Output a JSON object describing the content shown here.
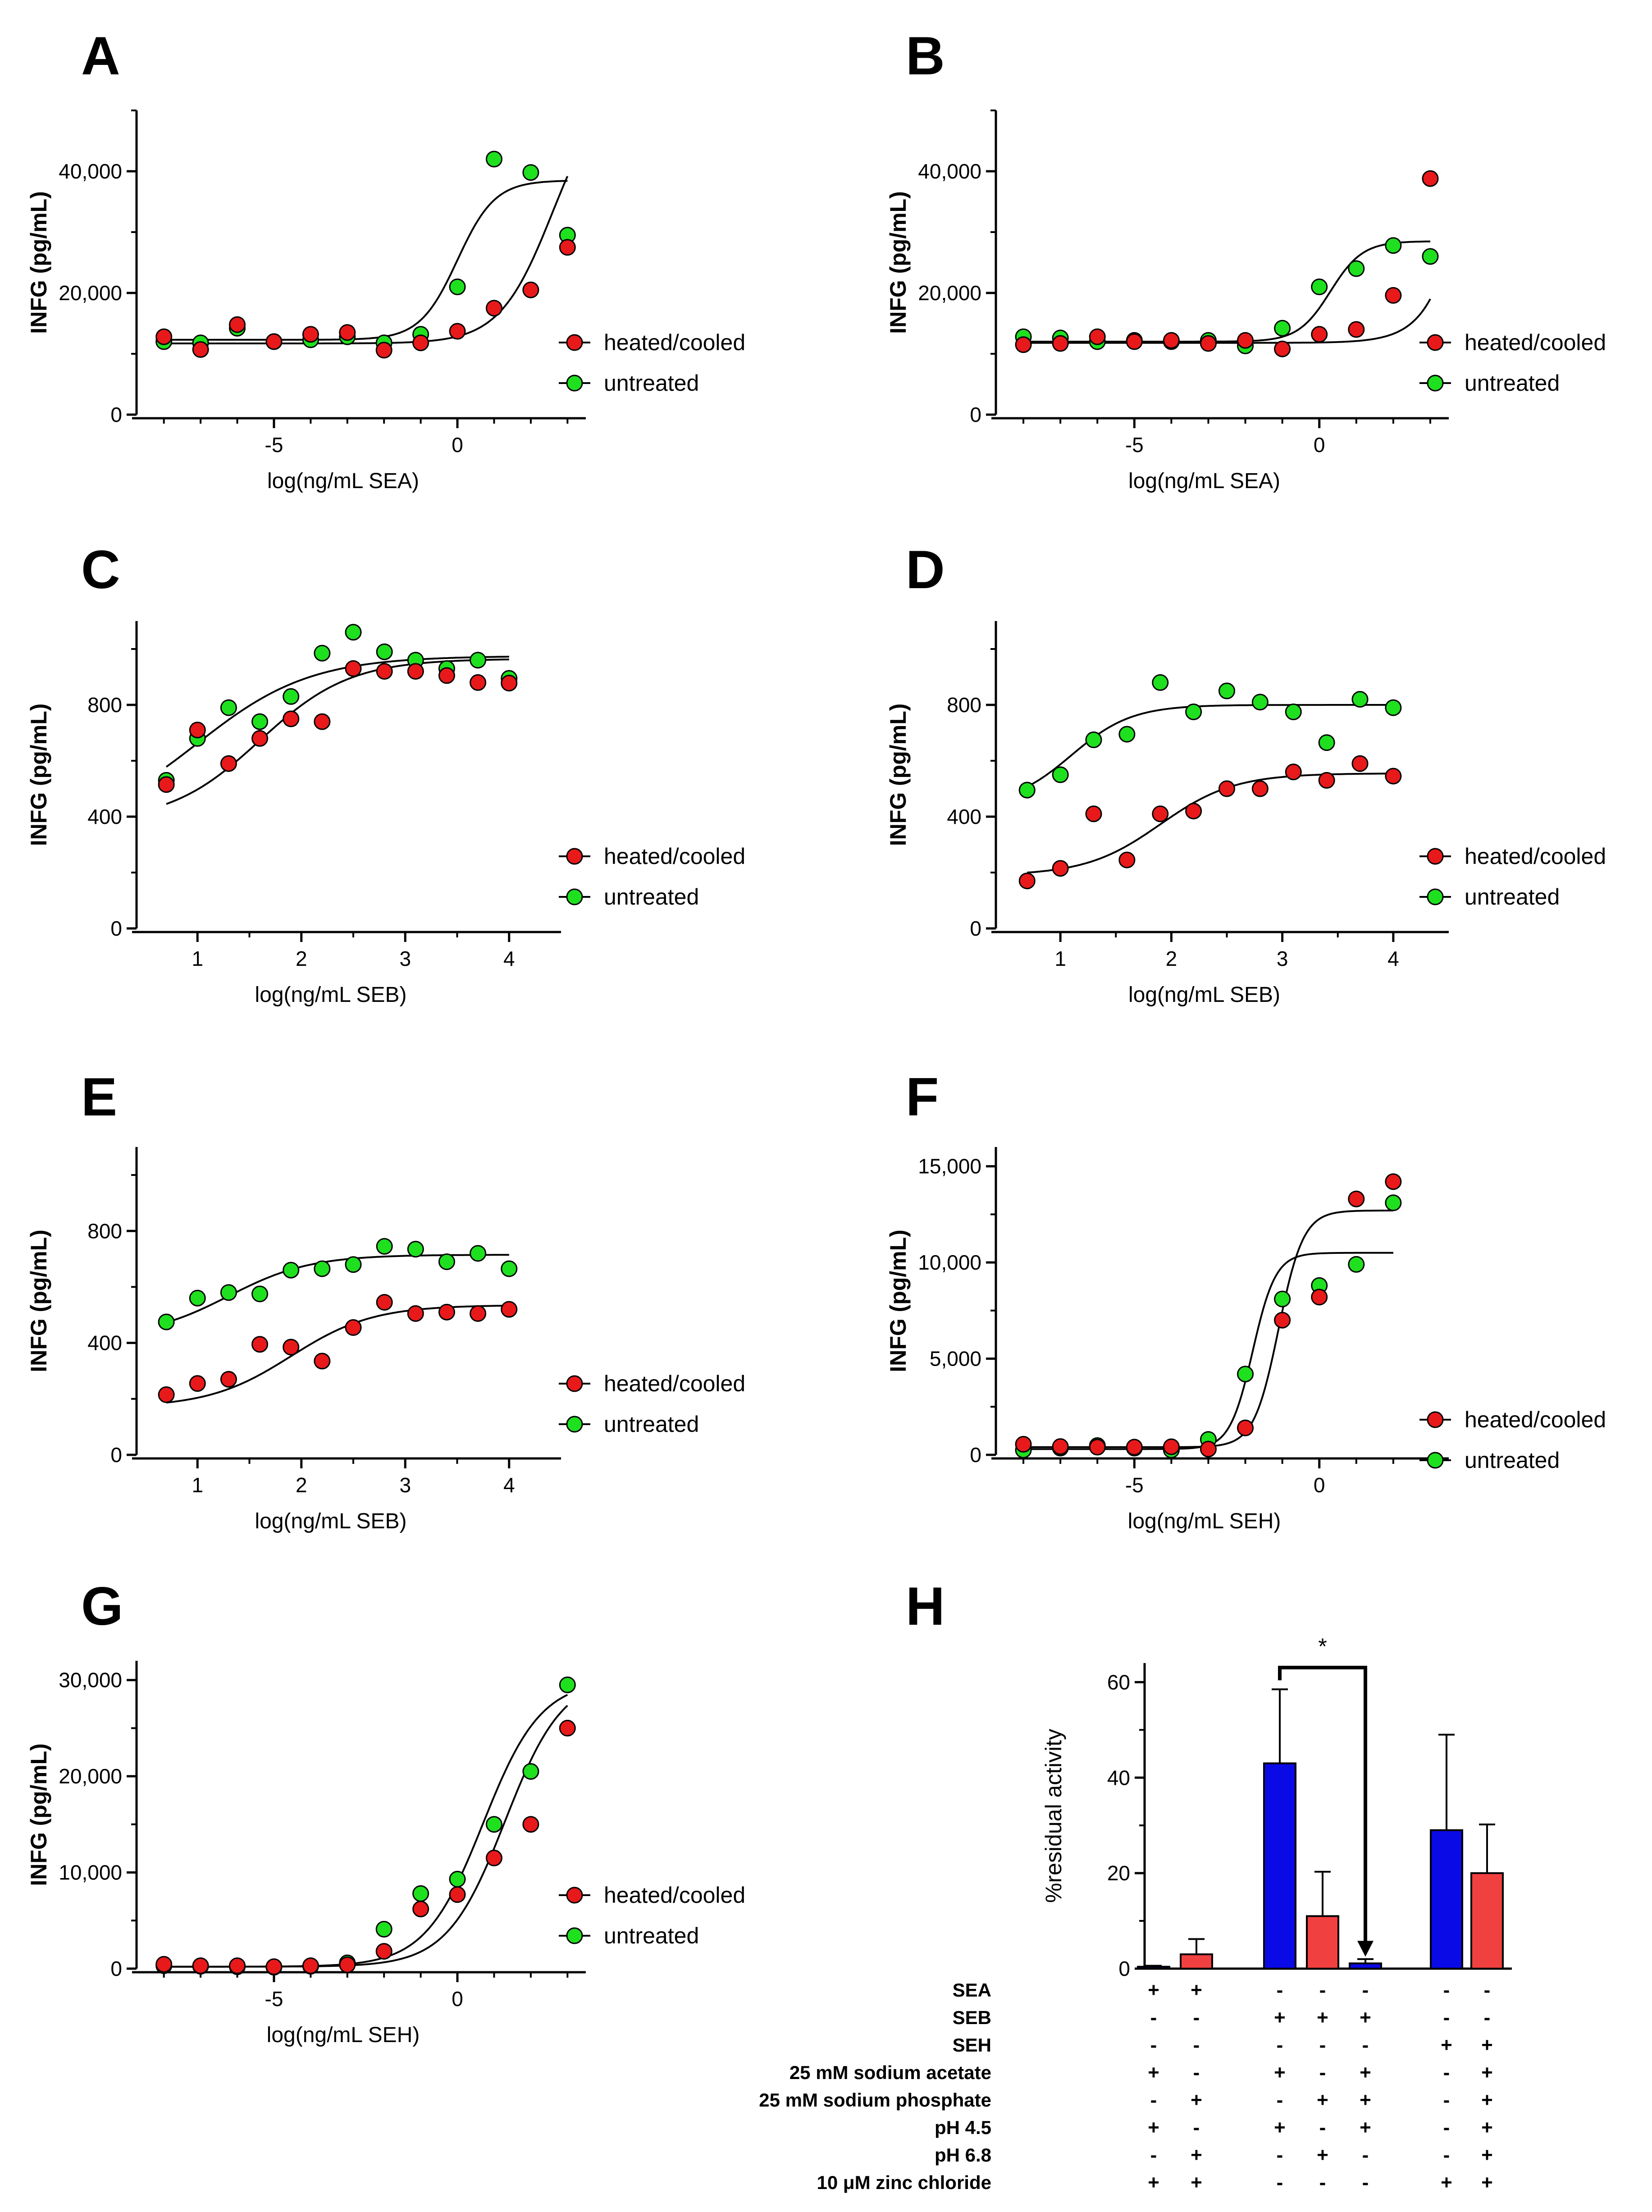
{
  "colors": {
    "heated": "#e8191a",
    "untreated": "#1fe01f",
    "blue": "#0a0ae6",
    "red": "#f04040"
  },
  "chart_data": [
    {
      "panel": "A",
      "type": "scatter",
      "ylabel": "INFG (pg/mL)",
      "xlabel": "log(ng/mL SEA)",
      "xlim": [
        -8.5,
        3.5
      ],
      "ylim": [
        0,
        50000
      ],
      "yticks": [
        0,
        20000,
        40000
      ],
      "ytick_labels": [
        "0",
        "20,000",
        "40,000"
      ],
      "xticks": [
        -5,
        0
      ],
      "xtick_labels": [
        "-5",
        "0"
      ],
      "legend": [
        "heated/cooled",
        "untreated"
      ],
      "series": [
        {
          "name": "heated/cooled",
          "x": [
            -8,
            -7,
            -6,
            -5,
            -4,
            -3,
            -2,
            -1,
            0,
            1,
            2,
            3
          ],
          "y": [
            12800,
            10700,
            14800,
            12000,
            13200,
            13500,
            10600,
            11800,
            13700,
            17500,
            20500,
            27500
          ],
          "fit": {
            "bottom": 11700,
            "top": 55000,
            "ec50_log": 2.6,
            "hill": 0.6
          }
        },
        {
          "name": "untreated",
          "x": [
            -8,
            -7,
            -6,
            -5,
            -4,
            -3,
            -2,
            -1,
            0,
            1,
            2,
            3
          ],
          "y": [
            12000,
            11800,
            14200,
            12000,
            12300,
            12800,
            11800,
            13200,
            21000,
            42000,
            39800,
            29500
          ],
          "fit": {
            "bottom": 12300,
            "top": 38500,
            "ec50_log": 0.0,
            "hill": 0.85
          }
        }
      ]
    },
    {
      "panel": "B",
      "type": "scatter",
      "ylabel": "INFG (pg/mL)",
      "xlabel": "log(ng/mL SEA)",
      "xlim": [
        -8.5,
        3.5
      ],
      "ylim": [
        0,
        50000
      ],
      "yticks": [
        0,
        20000,
        40000
      ],
      "ytick_labels": [
        "0",
        "20,000",
        "40,000"
      ],
      "xticks": [
        -5,
        0
      ],
      "xtick_labels": [
        "-5",
        "0"
      ],
      "legend": [
        "heated/cooled",
        "untreated"
      ],
      "series": [
        {
          "name": "heated/cooled",
          "x": [
            -8,
            -7,
            -6,
            -5,
            -4,
            -3,
            -2,
            -1,
            0,
            1,
            2,
            3
          ],
          "y": [
            11500,
            11700,
            12800,
            12000,
            12200,
            11700,
            12200,
            10800,
            13200,
            14000,
            19600,
            38800
          ],
          "fit": {
            "bottom": 11800,
            "top": 200000,
            "ec50_log": 5.0,
            "hill": 0.7
          }
        },
        {
          "name": "untreated",
          "x": [
            -8,
            -7,
            -6,
            -5,
            -4,
            -3,
            -2,
            -1,
            0,
            1,
            2,
            3
          ],
          "y": [
            12800,
            12600,
            12000,
            12200,
            12000,
            12200,
            11300,
            14200,
            21000,
            24000,
            27800,
            26000
          ],
          "fit": {
            "bottom": 12000,
            "top": 28500,
            "ec50_log": 0.3,
            "hill": 1.0
          }
        }
      ]
    },
    {
      "panel": "C",
      "type": "scatter",
      "ylabel": "INFG (pg/mL)",
      "xlabel": "log(ng/mL SEB)",
      "xlim": [
        0.5,
        4.5
      ],
      "ylim": [
        0,
        1100
      ],
      "yticks": [
        0,
        400,
        800
      ],
      "ytick_labels": [
        "0",
        "400",
        "800"
      ],
      "xticks": [
        1,
        2,
        3,
        4
      ],
      "xtick_labels": [
        "1",
        "2",
        "3",
        "4"
      ],
      "legend": [
        "heated/cooled",
        "untreated"
      ],
      "series": [
        {
          "name": "heated/cooled",
          "x": [
            0.7,
            1.0,
            1.3,
            1.6,
            1.9,
            2.2,
            2.5,
            2.8,
            3.1,
            3.4,
            3.7,
            4.0
          ],
          "y": [
            515,
            710,
            590,
            680,
            750,
            740,
            930,
            920,
            920,
            905,
            880,
            878
          ],
          "fit": {
            "bottom": 380,
            "top": 965,
            "ec50_log": 1.6,
            "hill": 1.0
          }
        },
        {
          "name": "untreated",
          "x": [
            0.7,
            1.0,
            1.3,
            1.6,
            1.9,
            2.2,
            2.5,
            2.8,
            3.1,
            3.4,
            3.7,
            4.0
          ],
          "y": [
            530,
            680,
            790,
            740,
            830,
            985,
            1060,
            990,
            960,
            930,
            960,
            895
          ],
          "fit": {
            "bottom": 350,
            "top": 975,
            "ec50_log": 1.0,
            "hill": 0.8
          }
        }
      ]
    },
    {
      "panel": "D",
      "type": "scatter",
      "ylabel": "INFG (pg/mL)",
      "xlabel": "log(ng/mL SEB)",
      "xlim": [
        0.5,
        4.5
      ],
      "ylim": [
        0,
        1100
      ],
      "yticks": [
        0,
        400,
        800
      ],
      "ytick_labels": [
        "0",
        "400",
        "800"
      ],
      "xticks": [
        1,
        2,
        3,
        4
      ],
      "xtick_labels": [
        "1",
        "2",
        "3",
        "4"
      ],
      "legend": [
        "heated/cooled",
        "untreated"
      ],
      "series": [
        {
          "name": "heated/cooled",
          "x": [
            0.7,
            1.0,
            1.3,
            1.6,
            1.9,
            2.2,
            2.5,
            2.8,
            3.1,
            3.4,
            3.7,
            4.0
          ],
          "y": [
            170,
            215,
            410,
            245,
            410,
            420,
            500,
            500,
            560,
            530,
            590,
            545
          ],
          "fit": {
            "bottom": 190,
            "top": 555,
            "ec50_log": 1.9,
            "hill": 1.3
          }
        },
        {
          "name": "untreated",
          "x": [
            0.7,
            1.0,
            1.3,
            1.6,
            1.9,
            2.2,
            2.5,
            2.8,
            3.1,
            3.4,
            3.7,
            4.0
          ],
          "y": [
            495,
            550,
            675,
            695,
            880,
            775,
            850,
            810,
            775,
            665,
            820,
            790
          ],
          "fit": {
            "bottom": 440,
            "top": 800,
            "ec50_log": 1.1,
            "hill": 1.6
          }
        }
      ]
    },
    {
      "panel": "E",
      "type": "scatter",
      "ylabel": "INFG (pg/mL)",
      "xlabel": "log(ng/mL SEB)",
      "xlim": [
        0.5,
        4.5
      ],
      "ylim": [
        0,
        1100
      ],
      "yticks": [
        0,
        400,
        800
      ],
      "ytick_labels": [
        "0",
        "400",
        "800"
      ],
      "xticks": [
        1,
        2,
        3,
        4
      ],
      "xtick_labels": [
        "1",
        "2",
        "3",
        "4"
      ],
      "legend": [
        "heated/cooled",
        "untreated"
      ],
      "series": [
        {
          "name": "heated/cooled",
          "x": [
            0.7,
            1.0,
            1.3,
            1.6,
            1.9,
            2.2,
            2.5,
            2.8,
            3.1,
            3.4,
            3.7,
            4.0
          ],
          "y": [
            215,
            255,
            270,
            395,
            385,
            335,
            455,
            545,
            505,
            510,
            505,
            520
          ],
          "fit": {
            "bottom": 170,
            "top": 535,
            "ec50_log": 1.9,
            "hill": 1.1
          }
        },
        {
          "name": "untreated",
          "x": [
            0.7,
            1.0,
            1.3,
            1.6,
            1.9,
            2.2,
            2.5,
            2.8,
            3.1,
            3.4,
            3.7,
            4.0
          ],
          "y": [
            475,
            560,
            580,
            575,
            660,
            665,
            680,
            745,
            735,
            690,
            720,
            665
          ],
          "fit": {
            "bottom": 420,
            "top": 715,
            "ec50_log": 1.3,
            "hill": 1.1
          }
        }
      ]
    },
    {
      "panel": "F",
      "type": "scatter",
      "ylabel": "INFG (pg/mL)",
      "xlabel": "log(ng/mL SEH)",
      "xlim": [
        -8.5,
        3.5
      ],
      "ylim": [
        0,
        16000
      ],
      "yticks": [
        0,
        5000,
        10000,
        15000
      ],
      "ytick_labels": [
        "0",
        "5,000",
        "10,000",
        "15,000"
      ],
      "xticks": [
        -5,
        0
      ],
      "xtick_labels": [
        "-5",
        "0"
      ],
      "legend": [
        "heated/cooled",
        "untreated"
      ],
      "series": [
        {
          "name": "heated/cooled",
          "x": [
            -8,
            -7,
            -6,
            -5,
            -4,
            -3,
            -2,
            -1,
            0,
            1,
            2
          ],
          "y": [
            550,
            430,
            400,
            400,
            420,
            300,
            1400,
            7000,
            8200,
            13300,
            14200
          ],
          "fit": {
            "bottom": 400,
            "top": 12700,
            "ec50_log": -1.1,
            "hill": 1.3
          }
        },
        {
          "name": "untreated",
          "x": [
            -8,
            -7,
            -6,
            -5,
            -4,
            -3,
            -2,
            -1,
            0,
            1,
            2
          ],
          "y": [
            250,
            350,
            480,
            350,
            250,
            800,
            4200,
            8100,
            8800,
            9900,
            13100
          ],
          "fit": {
            "bottom": 300,
            "top": 10500,
            "ec50_log": -1.8,
            "hill": 1.4
          }
        }
      ]
    },
    {
      "panel": "G",
      "type": "scatter",
      "ylabel": "INFG (pg/mL)",
      "xlabel": "log(ng/mL SEH)",
      "xlim": [
        -8.5,
        3.5
      ],
      "ylim": [
        0,
        32000
      ],
      "yticks": [
        0,
        10000,
        20000,
        30000
      ],
      "ytick_labels": [
        "0",
        "10,000",
        "20,000",
        "30,000"
      ],
      "xticks": [
        -5,
        0
      ],
      "xtick_labels": [
        "-5",
        "0"
      ],
      "legend": [
        "heated/cooled",
        "untreated"
      ],
      "series": [
        {
          "name": "heated/cooled",
          "x": [
            -8,
            -7,
            -6,
            -5,
            -4,
            -3,
            -2,
            -1,
            0,
            1,
            2,
            3
          ],
          "y": [
            450,
            300,
            300,
            200,
            300,
            400,
            1800,
            6200,
            7700,
            11500,
            15000,
            25000
          ],
          "fit": {
            "bottom": 200,
            "top": 30500,
            "ec50_log": 1.3,
            "hill": 0.55
          }
        },
        {
          "name": "untreated",
          "x": [
            -8,
            -7,
            -6,
            -5,
            -4,
            -3,
            -2,
            -1,
            0,
            1,
            2,
            3
          ],
          "y": [
            300,
            250,
            200,
            150,
            250,
            600,
            4100,
            7800,
            9300,
            15000,
            20500,
            29500
          ],
          "fit": {
            "bottom": 200,
            "top": 30000,
            "ec50_log": 0.7,
            "hill": 0.55
          }
        }
      ]
    },
    {
      "panel": "H",
      "type": "bar",
      "ylabel": "%residual activity",
      "ylim": [
        0,
        64
      ],
      "yticks": [
        0,
        20,
        40,
        60
      ],
      "ytick_labels": [
        "0",
        "20",
        "40",
        "60"
      ],
      "bars": [
        {
          "value": 0.4,
          "error": 0.2,
          "color": "blue"
        },
        {
          "value": 3.0,
          "error": 3.2,
          "color": "red"
        },
        {
          "value": 43.0,
          "error": 15.5,
          "color": "blue"
        },
        {
          "value": 11.0,
          "error": 9.3,
          "color": "red"
        },
        {
          "value": 1.1,
          "error": 0.9,
          "color": "blue"
        },
        {
          "value": 29.0,
          "error": 20.0,
          "color": "blue"
        },
        {
          "value": 20.0,
          "error": 10.2,
          "color": "red"
        }
      ],
      "significance": {
        "label": "*",
        "from_bar": 2,
        "to_bar": 4
      },
      "condition_rows": [
        {
          "label": "SEA",
          "values": [
            "+",
            "+",
            "-",
            "-",
            "-",
            "-",
            "-"
          ]
        },
        {
          "label": "SEB",
          "values": [
            "-",
            "-",
            "+",
            "+",
            "+",
            "-",
            "-"
          ]
        },
        {
          "label": "SEH",
          "values": [
            "-",
            "-",
            "-",
            "-",
            "-",
            "+",
            "+"
          ]
        },
        {
          "label": "25 mM sodium acetate",
          "values": [
            "+",
            "-",
            "+",
            "-",
            "+",
            "-",
            "+"
          ]
        },
        {
          "label": "25 mM sodium phosphate",
          "values": [
            "-",
            "+",
            "-",
            "+",
            "+",
            "-",
            "+"
          ]
        },
        {
          "label": "pH 4.5",
          "values": [
            "+",
            "-",
            "+",
            "-",
            "+",
            "-",
            "+"
          ]
        },
        {
          "label": "pH 6.8",
          "values": [
            "-",
            "+",
            "-",
            "+",
            "-",
            "-",
            "+"
          ]
        },
        {
          "label": "10 μM zinc chloride",
          "values": [
            "+",
            "+",
            "-",
            "-",
            "-",
            "+",
            "+"
          ]
        }
      ]
    }
  ]
}
